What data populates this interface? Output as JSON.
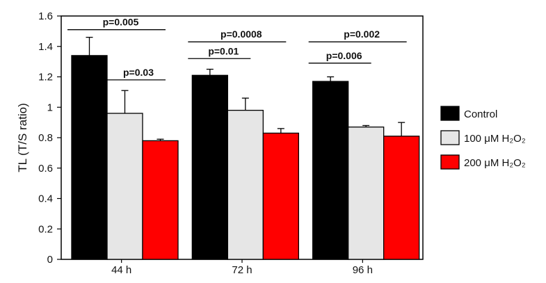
{
  "chart_data": {
    "type": "bar",
    "title": "",
    "xlabel": "",
    "ylabel": "TL (T/S ratio)",
    "ylim": [
      0,
      1.6
    ],
    "yticks": [
      "0",
      "0.2",
      "0.4",
      "0.6",
      "0.8",
      "1",
      "1.2",
      "1.4",
      "1.6"
    ],
    "categories": [
      "44 h",
      "72 h",
      "96 h"
    ],
    "grid": false,
    "legend_position": "right",
    "series": [
      {
        "name": "Control",
        "color": "#000000",
        "values": [
          1.34,
          1.21,
          1.17
        ],
        "errors": [
          0.12,
          0.04,
          0.03
        ]
      },
      {
        "name": "100 μM H₂O₂",
        "color": "#e6e6e6",
        "values": [
          0.96,
          0.98,
          0.87
        ],
        "errors": [
          0.15,
          0.08,
          0.01
        ]
      },
      {
        "name": "200 μM H₂O₂",
        "color": "#ff0000",
        "values": [
          0.78,
          0.83,
          0.81
        ],
        "errors": [
          0.01,
          0.03,
          0.09
        ]
      }
    ],
    "annotations": [
      {
        "text": "p=0.005",
        "category": 0,
        "from_series": 0,
        "to_series": 2,
        "level": 1.51
      },
      {
        "text": "p=0.03",
        "category": 0,
        "from_series": 1,
        "to_series": 2,
        "level": 1.18
      },
      {
        "text": "p=0.0008",
        "category": 1,
        "from_series": 0,
        "to_series": 2,
        "level": 1.43
      },
      {
        "text": "p=0.01",
        "category": 1,
        "from_series": 0,
        "to_series": 1,
        "level": 1.32
      },
      {
        "text": "p=0.002",
        "category": 2,
        "from_series": 0,
        "to_series": 2,
        "level": 1.43
      },
      {
        "text": "p=0.006",
        "category": 2,
        "from_series": 0,
        "to_series": 1,
        "level": 1.29
      }
    ]
  }
}
